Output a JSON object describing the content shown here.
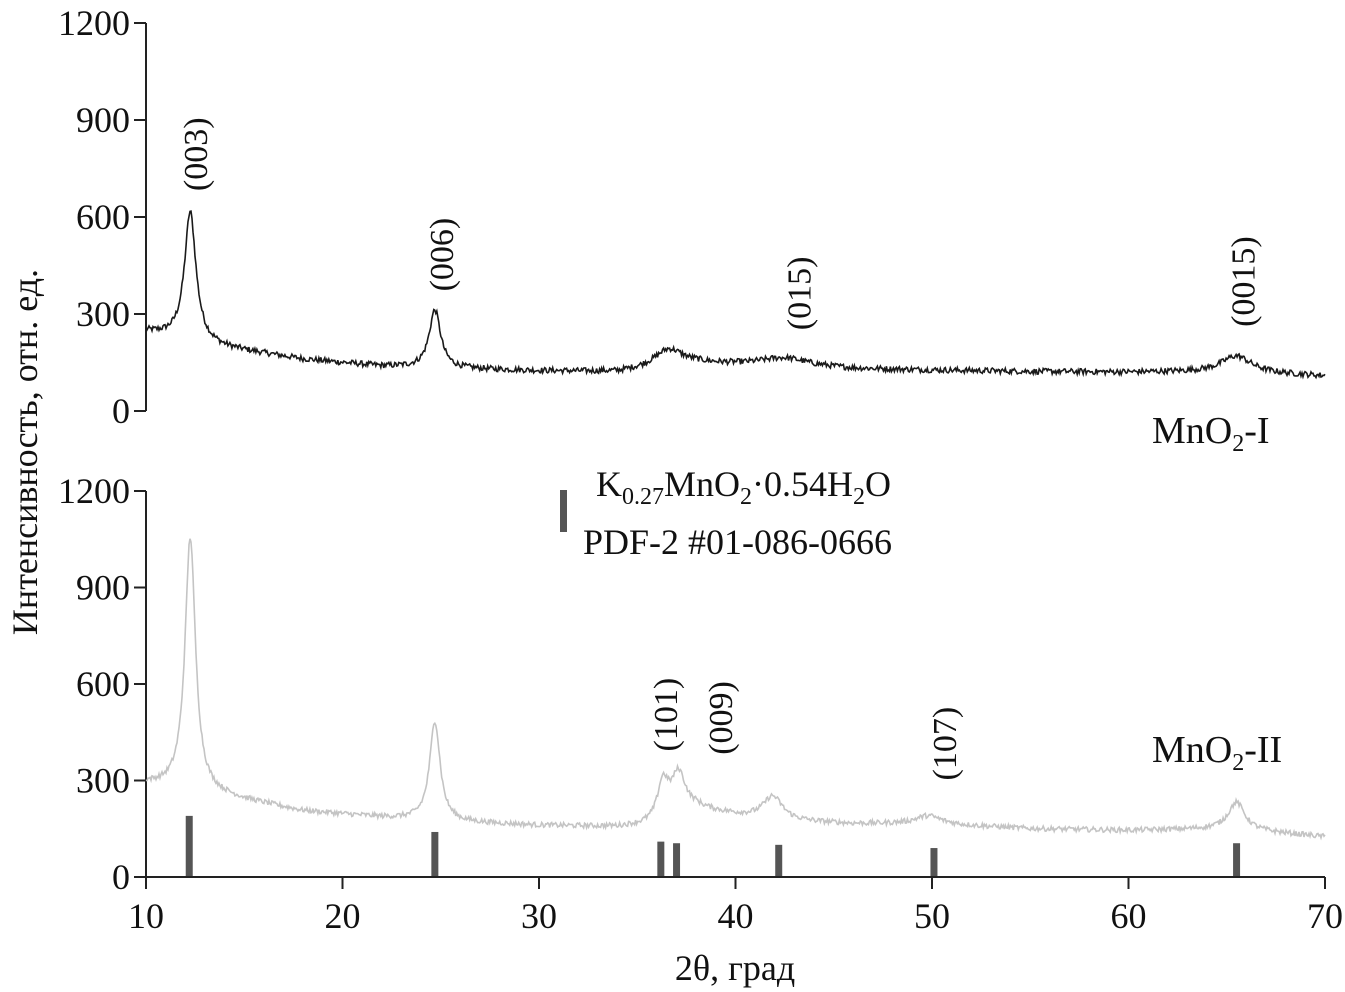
{
  "chart_data": {
    "type": "line",
    "xlabel": "2θ, град",
    "ylabel": "Интенсивность, отн. ед.",
    "xlim": [
      10,
      70
    ],
    "xticks": [
      10,
      20,
      30,
      40,
      50,
      60,
      70
    ],
    "reference": {
      "formula_parts": [
        "K",
        "0.27",
        "MnO",
        "2",
        "·0.54H",
        "2",
        "O"
      ],
      "card": "PDF-2 #01-086-0666",
      "color": "#555555",
      "sticks": [
        {
          "x": 12.2,
          "y": 190
        },
        {
          "x": 24.7,
          "y": 140
        },
        {
          "x": 36.2,
          "y": 110
        },
        {
          "x": 37.0,
          "y": 105
        },
        {
          "x": 42.2,
          "y": 100
        },
        {
          "x": 50.1,
          "y": 90
        },
        {
          "x": 65.5,
          "y": 105
        }
      ]
    },
    "panels": [
      {
        "name_parts": [
          "MnO",
          "2",
          "-I"
        ],
        "color": "#1a1a1a",
        "ylim": [
          0,
          1200
        ],
        "yticks": [
          0,
          300,
          600,
          900,
          1200
        ],
        "noise": 9,
        "profile": {
          "background": [
            [
              10,
              245
            ],
            [
              14,
              195
            ],
            [
              18,
              160
            ],
            [
              22,
              138
            ],
            [
              26,
              130
            ],
            [
              30,
              124
            ],
            [
              34,
              120
            ],
            [
              38,
              145
            ],
            [
              42,
              140
            ],
            [
              46,
              130
            ],
            [
              50,
              126
            ],
            [
              55,
              122
            ],
            [
              60,
              120
            ],
            [
              65,
              122
            ],
            [
              70,
              108
            ]
          ],
          "peaks": [
            {
              "center": 12.25,
              "height": 400,
              "width": 0.35
            },
            {
              "center": 24.7,
              "height": 180,
              "width": 0.35
            },
            {
              "center": 36.6,
              "height": 55,
              "width": 0.9
            },
            {
              "center": 42.5,
              "height": 25,
              "width": 1.5
            },
            {
              "center": 65.5,
              "height": 50,
              "width": 0.9
            }
          ]
        },
        "annotations": [
          {
            "label": "(003)",
            "x": 12.5,
            "y": 680
          },
          {
            "label": "(006)",
            "x": 25.0,
            "y": 370
          },
          {
            "label": "(015)",
            "x": 43.2,
            "y": 250
          },
          {
            "label": "(0015)",
            "x": 65.8,
            "y": 260
          }
        ]
      },
      {
        "name_parts": [
          "MnO",
          "2",
          "-II"
        ],
        "color": "#c4c4c4",
        "ylim": [
          0,
          1200
        ],
        "yticks": [
          0,
          300,
          600,
          900,
          1200
        ],
        "noise": 8,
        "profile": {
          "background": [
            [
              10,
              290
            ],
            [
              14,
              250
            ],
            [
              18,
              205
            ],
            [
              22,
              185
            ],
            [
              26,
              170
            ],
            [
              30,
              160
            ],
            [
              34,
              155
            ],
            [
              36,
              160
            ],
            [
              38,
              210
            ],
            [
              42,
              175
            ],
            [
              46,
              165
            ],
            [
              50,
              165
            ],
            [
              55,
              150
            ],
            [
              60,
              145
            ],
            [
              65,
              150
            ],
            [
              70,
              125
            ]
          ],
          "peaks": [
            {
              "center": 12.25,
              "height": 790,
              "width": 0.32
            },
            {
              "center": 24.7,
              "height": 310,
              "width": 0.32
            },
            {
              "center": 36.3,
              "height": 120,
              "width": 0.35
            },
            {
              "center": 37.1,
              "height": 130,
              "width": 0.45
            },
            {
              "center": 41.9,
              "height": 75,
              "width": 0.6
            },
            {
              "center": 49.8,
              "height": 25,
              "width": 0.8
            },
            {
              "center": 65.5,
              "height": 85,
              "width": 0.5
            }
          ]
        },
        "annotations": [
          {
            "label": "(101)",
            "x": 36.4,
            "y": 390
          },
          {
            "label": "(009)",
            "x": 39.2,
            "y": 380
          },
          {
            "label": "(107)",
            "x": 50.6,
            "y": 300
          }
        ]
      }
    ]
  }
}
